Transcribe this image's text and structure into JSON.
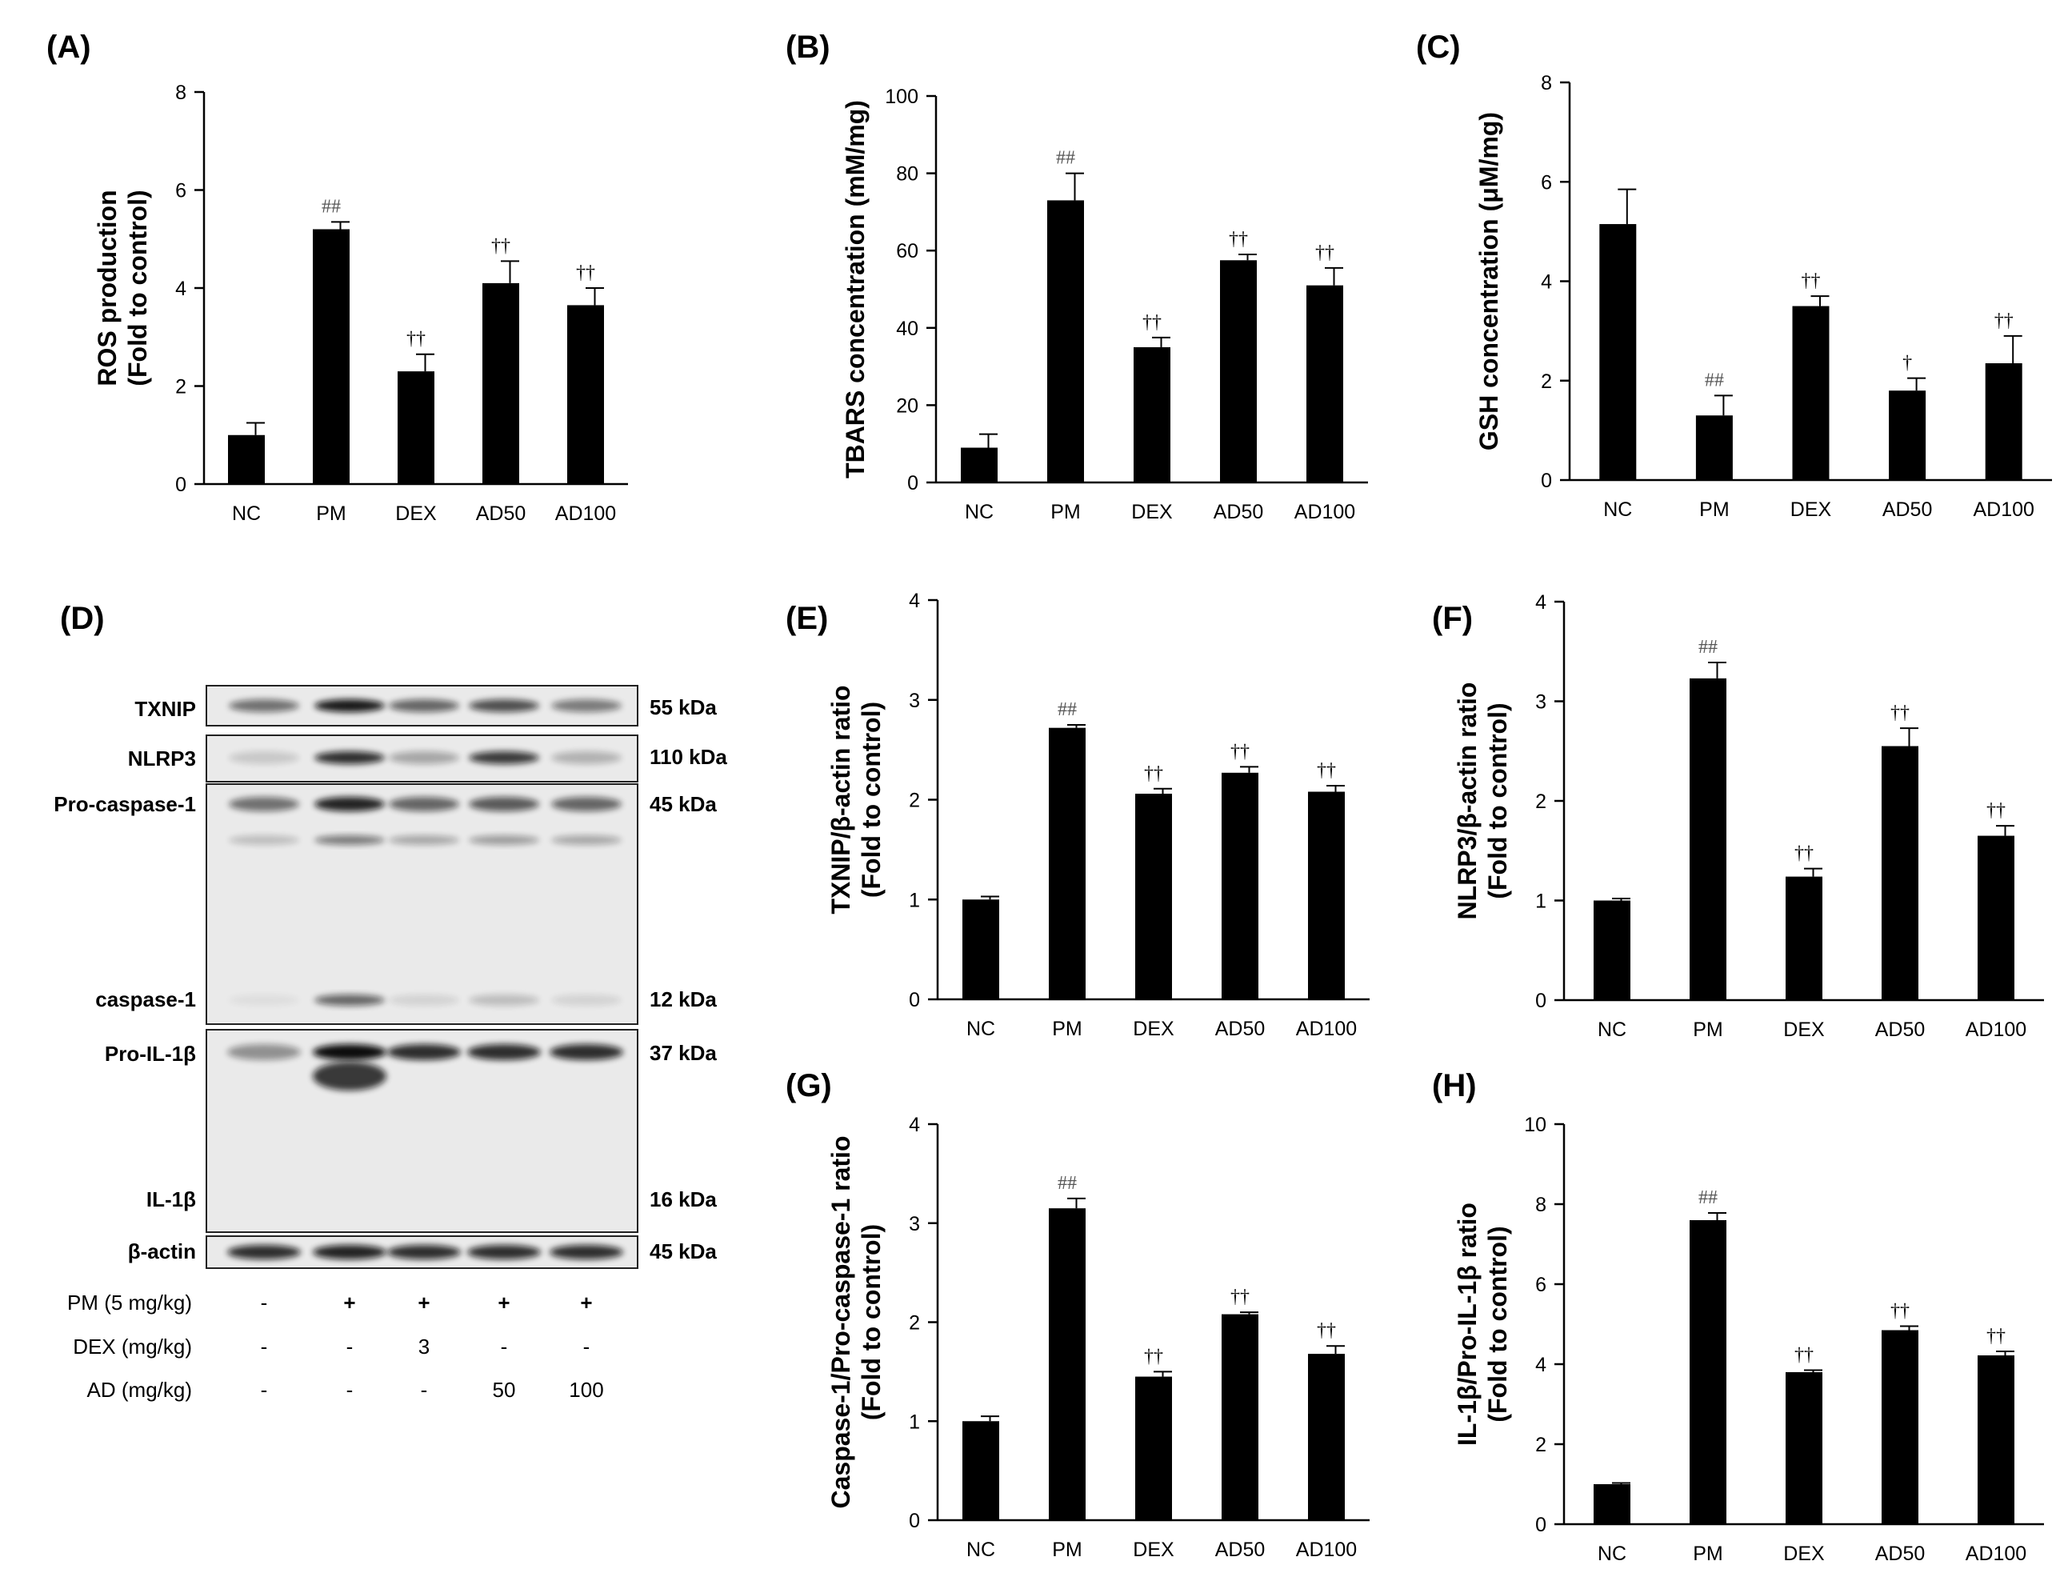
{
  "figure": {
    "panels": [
      {
        "id": "A",
        "label": "(A)",
        "ylabel_lines": [
          "ROS production",
          "(Fold to control)"
        ]
      },
      {
        "id": "B",
        "label": "(B)",
        "ylabel_lines": [
          "TBARS concentration (mM/mg)"
        ]
      },
      {
        "id": "C",
        "label": "(C)",
        "ylabel_lines": [
          "GSH concentration (μM/mg)"
        ]
      },
      {
        "id": "D",
        "label": "(D)"
      },
      {
        "id": "E",
        "label": "(E)",
        "ylabel_lines": [
          "TXNIP/β-actin ratio",
          "(Fold to control)"
        ]
      },
      {
        "id": "F",
        "label": "(F)",
        "ylabel_lines": [
          "NLRP3/β-actin ratio",
          "(Fold to control)"
        ]
      },
      {
        "id": "G",
        "label": "(G)",
        "ylabel_lines": [
          "Caspase-1/Pro-caspase-1 ratio",
          "(Fold to control)"
        ]
      },
      {
        "id": "H",
        "label": "(H)",
        "ylabel_lines": [
          "IL-1β/Pro-IL-1β ratio",
          "(Fold to control)"
        ]
      }
    ]
  },
  "chart_data": [
    {
      "panel": "A",
      "type": "bar",
      "categories": [
        "NC",
        "PM",
        "DEX",
        "AD50",
        "AD100"
      ],
      "values": [
        1.0,
        5.2,
        2.3,
        4.1,
        3.65
      ],
      "errors": [
        0.25,
        0.15,
        0.35,
        0.45,
        0.35
      ],
      "annotations": [
        "",
        "##",
        "††",
        "††",
        "††"
      ],
      "ylabel": "ROS production (Fold to control)",
      "ylim": [
        0,
        8
      ],
      "yticks": [
        0,
        2,
        4,
        6,
        8
      ]
    },
    {
      "panel": "B",
      "type": "bar",
      "categories": [
        "NC",
        "PM",
        "DEX",
        "AD50",
        "AD100"
      ],
      "values": [
        9,
        73,
        35,
        57.5,
        51
      ],
      "errors": [
        3.5,
        7,
        2.5,
        1.5,
        4.5
      ],
      "annotations": [
        "",
        "##",
        "††",
        "††",
        "††"
      ],
      "ylabel": "TBARS concentration (mM/mg)",
      "ylim": [
        0,
        100
      ],
      "yticks": [
        0,
        20,
        40,
        60,
        80,
        100
      ]
    },
    {
      "panel": "C",
      "type": "bar",
      "categories": [
        "NC",
        "PM",
        "DEX",
        "AD50",
        "AD100"
      ],
      "values": [
        5.15,
        1.3,
        3.5,
        1.8,
        2.35
      ],
      "errors": [
        0.7,
        0.4,
        0.2,
        0.25,
        0.55
      ],
      "annotations": [
        "",
        "##",
        "††",
        "†",
        "††"
      ],
      "ylabel": "GSH concentration (μM/mg)",
      "ylim": [
        0,
        8
      ],
      "yticks": [
        0,
        2,
        4,
        6,
        8
      ]
    },
    {
      "panel": "E",
      "type": "bar",
      "categories": [
        "NC",
        "PM",
        "DEX",
        "AD50",
        "AD100"
      ],
      "values": [
        1.0,
        2.72,
        2.06,
        2.27,
        2.08
      ],
      "errors": [
        0.03,
        0.03,
        0.05,
        0.06,
        0.06
      ],
      "annotations": [
        "",
        "##",
        "††",
        "††",
        "††"
      ],
      "ylabel": "TXNIP/β-actin ratio (Fold to control)",
      "ylim": [
        0,
        4
      ],
      "yticks": [
        0,
        1,
        2,
        3,
        4
      ]
    },
    {
      "panel": "F",
      "type": "bar",
      "categories": [
        "NC",
        "PM",
        "DEX",
        "AD50",
        "AD100"
      ],
      "values": [
        1.0,
        3.23,
        1.24,
        2.55,
        1.65
      ],
      "errors": [
        0.02,
        0.16,
        0.08,
        0.18,
        0.1
      ],
      "annotations": [
        "",
        "##",
        "††",
        "††",
        "††"
      ],
      "ylabel": "NLRP3/β-actin ratio (Fold to control)",
      "ylim": [
        0,
        4
      ],
      "yticks": [
        0,
        1,
        2,
        3,
        4
      ]
    },
    {
      "panel": "G",
      "type": "bar",
      "categories": [
        "NC",
        "PM",
        "DEX",
        "AD50",
        "AD100"
      ],
      "values": [
        1.0,
        3.15,
        1.45,
        2.08,
        1.68
      ],
      "errors": [
        0.05,
        0.1,
        0.05,
        0.02,
        0.08
      ],
      "annotations": [
        "",
        "##",
        "††",
        "††",
        "††"
      ],
      "ylabel": "Caspase-1/Pro-caspase-1 ratio (Fold to control)",
      "ylim": [
        0,
        4
      ],
      "yticks": [
        0,
        1,
        2,
        3,
        4
      ]
    },
    {
      "panel": "H",
      "type": "bar",
      "categories": [
        "NC",
        "PM",
        "DEX",
        "AD50",
        "AD100"
      ],
      "values": [
        1.0,
        7.6,
        3.8,
        4.85,
        4.22
      ],
      "errors": [
        0.03,
        0.18,
        0.05,
        0.1,
        0.1
      ],
      "annotations": [
        "",
        "##",
        "††",
        "††",
        "††"
      ],
      "ylabel": "IL-1β/Pro-IL-1β ratio (Fold to control)",
      "ylim": [
        0,
        10
      ],
      "yticks": [
        0,
        2,
        4,
        6,
        8,
        10
      ]
    }
  ],
  "western_blot": {
    "protein_labels": [
      "TXNIP",
      "NLRP3",
      "Pro-caspase-1",
      "caspase-1",
      "Pro-IL-1β",
      "IL-1β",
      "β-actin"
    ],
    "kda_labels": [
      "55 kDa",
      "110 kDa",
      "45 kDa",
      "12 kDa",
      "37 kDa",
      "16 kDa",
      "45 kDa"
    ],
    "treatments": [
      {
        "label": "PM (5 mg/kg)",
        "values": [
          "-",
          "+",
          "+",
          "+",
          "+"
        ]
      },
      {
        "label": "DEX (mg/kg)",
        "values": [
          "-",
          "-",
          "3",
          "-",
          "-"
        ]
      },
      {
        "label": "AD (mg/kg)",
        "values": [
          "-",
          "-",
          "-",
          "50",
          "100"
        ]
      }
    ]
  }
}
